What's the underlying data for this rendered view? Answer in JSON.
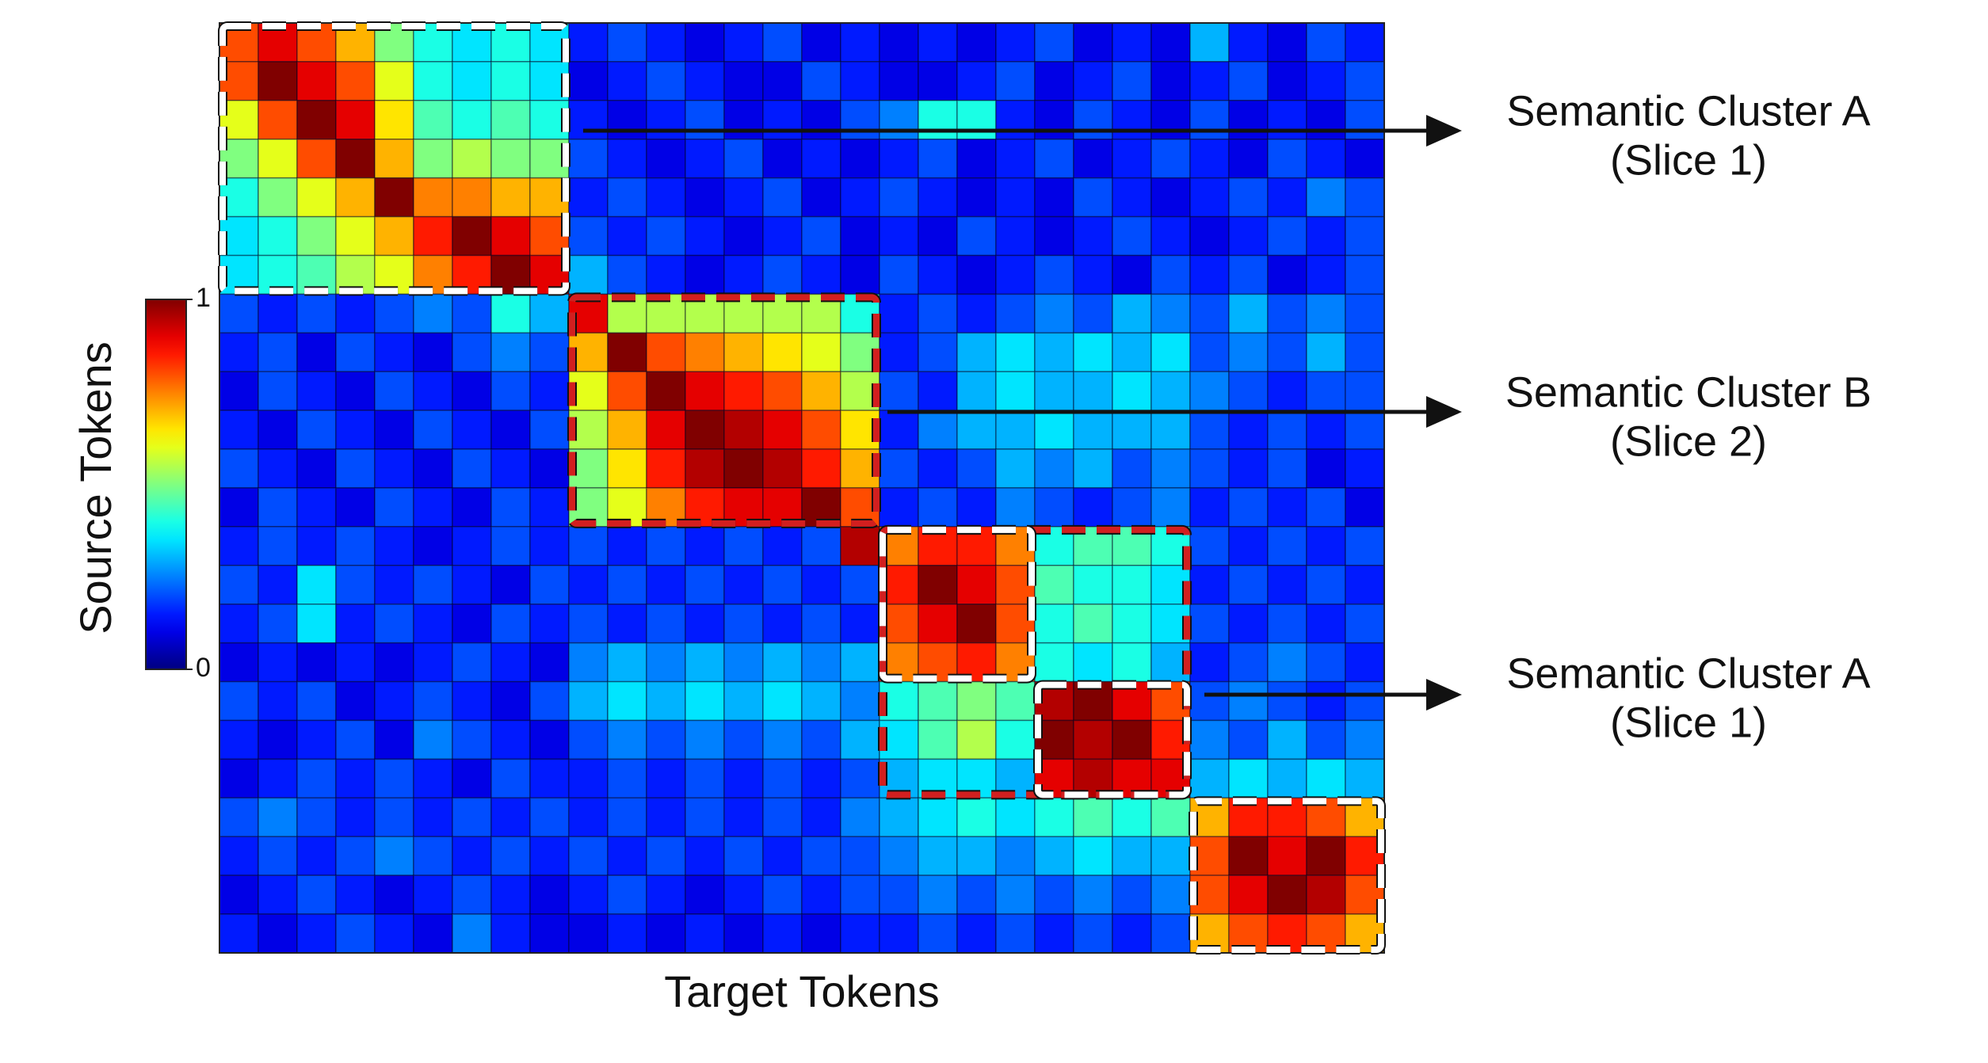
{
  "chart_data": {
    "type": "heatmap",
    "xlabel": "Target Tokens",
    "ylabel": "Source Tokens",
    "colormap": "jet",
    "clim": [
      0,
      1
    ],
    "cticks": [
      0,
      1
    ],
    "grid": true,
    "annotations": [
      [
        "Semantic Cluster A",
        "(Slice 1)"
      ],
      [
        "Semantic Cluster B",
        "(Slice 2)"
      ],
      [
        "Semantic Cluster A",
        "(Slice 1)"
      ]
    ],
    "values": [
      [
        0.8,
        0.9,
        0.8,
        0.7,
        0.5,
        0.4,
        0.35,
        0.4,
        0.35,
        0.15,
        0.2,
        0.15,
        0.1,
        0.15,
        0.2,
        0.1,
        0.15,
        0.1,
        0.15,
        0.1,
        0.15,
        0.2,
        0.1,
        0.15,
        0.1,
        0.3,
        0.15,
        0.1,
        0.2,
        0.15
      ],
      [
        0.8,
        1,
        0.9,
        0.8,
        0.6,
        0.4,
        0.35,
        0.4,
        0.35,
        0.1,
        0.15,
        0.2,
        0.15,
        0.1,
        0.1,
        0.2,
        0.15,
        0.1,
        0.1,
        0.15,
        0.2,
        0.1,
        0.15,
        0.2,
        0.1,
        0.15,
        0.2,
        0.1,
        0.15,
        0.2
      ],
      [
        0.6,
        0.8,
        1,
        0.9,
        0.65,
        0.45,
        0.4,
        0.45,
        0.4,
        0.15,
        0.1,
        0.15,
        0.2,
        0.1,
        0.15,
        0.1,
        0.2,
        0.25,
        0.4,
        0.4,
        0.15,
        0.1,
        0.2,
        0.15,
        0.1,
        0.2,
        0.1,
        0.15,
        0.1,
        0.2
      ],
      [
        0.5,
        0.6,
        0.8,
        1,
        0.7,
        0.5,
        0.55,
        0.5,
        0.5,
        0.2,
        0.15,
        0.1,
        0.15,
        0.2,
        0.1,
        0.15,
        0.1,
        0.15,
        0.2,
        0.1,
        0.15,
        0.2,
        0.1,
        0.15,
        0.2,
        0.15,
        0.1,
        0.2,
        0.15,
        0.1
      ],
      [
        0.4,
        0.5,
        0.6,
        0.7,
        1,
        0.75,
        0.75,
        0.7,
        0.7,
        0.15,
        0.2,
        0.15,
        0.1,
        0.15,
        0.2,
        0.1,
        0.15,
        0.2,
        0.15,
        0.1,
        0.15,
        0.1,
        0.2,
        0.15,
        0.1,
        0.15,
        0.2,
        0.15,
        0.25,
        0.2
      ],
      [
        0.35,
        0.4,
        0.5,
        0.6,
        0.7,
        0.85,
        1,
        0.9,
        0.8,
        0.2,
        0.15,
        0.2,
        0.15,
        0.1,
        0.15,
        0.2,
        0.1,
        0.15,
        0.1,
        0.2,
        0.15,
        0.1,
        0.15,
        0.2,
        0.15,
        0.1,
        0.15,
        0.2,
        0.15,
        0.2
      ],
      [
        0.35,
        0.4,
        0.45,
        0.55,
        0.6,
        0.75,
        0.85,
        1,
        0.9,
        0.3,
        0.2,
        0.15,
        0.1,
        0.15,
        0.2,
        0.15,
        0.1,
        0.2,
        0.15,
        0.1,
        0.15,
        0.2,
        0.15,
        0.1,
        0.2,
        0.15,
        0.2,
        0.1,
        0.15,
        0.2
      ],
      [
        0.2,
        0.15,
        0.2,
        0.15,
        0.2,
        0.25,
        0.2,
        0.4,
        0.3,
        0.9,
        0.55,
        0.55,
        0.55,
        0.55,
        0.55,
        0.55,
        0.4,
        0.15,
        0.2,
        0.15,
        0.2,
        0.25,
        0.2,
        0.3,
        0.25,
        0.2,
        0.3,
        0.2,
        0.25,
        0.2
      ],
      [
        0.15,
        0.2,
        0.1,
        0.2,
        0.15,
        0.1,
        0.2,
        0.25,
        0.2,
        0.7,
        1,
        0.8,
        0.75,
        0.7,
        0.65,
        0.6,
        0.5,
        0.15,
        0.2,
        0.3,
        0.35,
        0.3,
        0.35,
        0.3,
        0.35,
        0.2,
        0.25,
        0.2,
        0.3,
        0.2
      ],
      [
        0.1,
        0.2,
        0.15,
        0.1,
        0.2,
        0.15,
        0.1,
        0.2,
        0.15,
        0.6,
        0.8,
        1,
        0.9,
        0.85,
        0.8,
        0.7,
        0.55,
        0.2,
        0.15,
        0.3,
        0.35,
        0.3,
        0.3,
        0.35,
        0.3,
        0.25,
        0.2,
        0.15,
        0.2,
        0.2
      ],
      [
        0.15,
        0.1,
        0.2,
        0.15,
        0.1,
        0.2,
        0.15,
        0.1,
        0.2,
        0.55,
        0.7,
        0.9,
        1,
        0.95,
        0.9,
        0.8,
        0.65,
        0.15,
        0.25,
        0.3,
        0.3,
        0.35,
        0.3,
        0.3,
        0.3,
        0.2,
        0.15,
        0.2,
        0.15,
        0.2
      ],
      [
        0.2,
        0.15,
        0.1,
        0.2,
        0.15,
        0.1,
        0.2,
        0.15,
        0.1,
        0.5,
        0.65,
        0.85,
        0.95,
        1,
        0.95,
        0.85,
        0.7,
        0.2,
        0.15,
        0.2,
        0.3,
        0.25,
        0.3,
        0.2,
        0.25,
        0.2,
        0.15,
        0.2,
        0.1,
        0.15
      ],
      [
        0.1,
        0.2,
        0.15,
        0.1,
        0.2,
        0.15,
        0.1,
        0.2,
        0.15,
        0.5,
        0.6,
        0.75,
        0.85,
        0.9,
        0.9,
        1,
        0.8,
        0.15,
        0.2,
        0.15,
        0.25,
        0.2,
        0.15,
        0.2,
        0.25,
        0.15,
        0.2,
        0.15,
        0.2,
        0.1
      ],
      [
        0.15,
        0.2,
        0.15,
        0.2,
        0.15,
        0.1,
        0.15,
        0.2,
        0.15,
        0.2,
        0.15,
        0.2,
        0.15,
        0.2,
        0.15,
        0.2,
        0.95,
        0.75,
        0.85,
        0.85,
        0.75,
        0.4,
        0.45,
        0.45,
        0.4,
        0.2,
        0.15,
        0.2,
        0.15,
        0.2
      ],
      [
        0.2,
        0.15,
        0.35,
        0.2,
        0.15,
        0.2,
        0.15,
        0.1,
        0.2,
        0.15,
        0.2,
        0.15,
        0.2,
        0.15,
        0.2,
        0.15,
        0.2,
        0.85,
        1,
        0.9,
        0.8,
        0.45,
        0.4,
        0.4,
        0.35,
        0.15,
        0.2,
        0.15,
        0.2,
        0.15
      ],
      [
        0.15,
        0.2,
        0.35,
        0.15,
        0.2,
        0.15,
        0.1,
        0.2,
        0.15,
        0.2,
        0.15,
        0.2,
        0.15,
        0.2,
        0.15,
        0.2,
        0.15,
        0.8,
        0.9,
        1,
        0.8,
        0.4,
        0.45,
        0.4,
        0.35,
        0.2,
        0.15,
        0.2,
        0.15,
        0.2
      ],
      [
        0.1,
        0.15,
        0.1,
        0.15,
        0.1,
        0.15,
        0.2,
        0.15,
        0.1,
        0.25,
        0.3,
        0.25,
        0.3,
        0.25,
        0.3,
        0.25,
        0.3,
        0.75,
        0.8,
        0.85,
        0.75,
        0.4,
        0.35,
        0.4,
        0.3,
        0.15,
        0.2,
        0.25,
        0.2,
        0.15
      ],
      [
        0.2,
        0.15,
        0.2,
        0.1,
        0.15,
        0.2,
        0.15,
        0.1,
        0.2,
        0.3,
        0.35,
        0.3,
        0.35,
        0.3,
        0.35,
        0.3,
        0.25,
        0.4,
        0.45,
        0.5,
        0.45,
        0.95,
        1,
        0.9,
        0.8,
        0.2,
        0.25,
        0.2,
        0.15,
        0.2
      ],
      [
        0.15,
        0.1,
        0.15,
        0.2,
        0.1,
        0.25,
        0.2,
        0.15,
        0.1,
        0.2,
        0.25,
        0.2,
        0.25,
        0.2,
        0.25,
        0.2,
        0.3,
        0.35,
        0.45,
        0.55,
        0.4,
        1,
        0.95,
        1,
        0.85,
        0.25,
        0.2,
        0.3,
        0.2,
        0.25
      ],
      [
        0.1,
        0.15,
        0.2,
        0.15,
        0.2,
        0.15,
        0.1,
        0.2,
        0.15,
        0.15,
        0.2,
        0.15,
        0.2,
        0.15,
        0.2,
        0.15,
        0.2,
        0.3,
        0.35,
        0.35,
        0.3,
        0.9,
        0.95,
        0.9,
        0.9,
        0.3,
        0.35,
        0.3,
        0.35,
        0.3
      ],
      [
        0.2,
        0.25,
        0.2,
        0.15,
        0.2,
        0.15,
        0.2,
        0.15,
        0.2,
        0.15,
        0.2,
        0.15,
        0.2,
        0.15,
        0.2,
        0.15,
        0.25,
        0.3,
        0.35,
        0.4,
        0.35,
        0.4,
        0.45,
        0.4,
        0.45,
        0.7,
        0.85,
        0.85,
        0.8,
        0.7
      ],
      [
        0.15,
        0.2,
        0.15,
        0.2,
        0.25,
        0.2,
        0.15,
        0.2,
        0.15,
        0.2,
        0.15,
        0.2,
        0.15,
        0.2,
        0.15,
        0.2,
        0.2,
        0.25,
        0.3,
        0.3,
        0.25,
        0.3,
        0.35,
        0.3,
        0.3,
        0.8,
        1,
        0.9,
        1,
        0.85
      ],
      [
        0.1,
        0.15,
        0.2,
        0.15,
        0.1,
        0.15,
        0.2,
        0.15,
        0.1,
        0.15,
        0.2,
        0.15,
        0.1,
        0.15,
        0.2,
        0.15,
        0.2,
        0.2,
        0.25,
        0.2,
        0.25,
        0.2,
        0.25,
        0.2,
        0.25,
        0.8,
        0.9,
        1,
        0.95,
        0.8
      ],
      [
        0.15,
        0.1,
        0.15,
        0.2,
        0.15,
        0.1,
        0.25,
        0.15,
        0.1,
        0.1,
        0.15,
        0.1,
        0.15,
        0.1,
        0.15,
        0.1,
        0.15,
        0.15,
        0.2,
        0.15,
        0.2,
        0.15,
        0.2,
        0.15,
        0.2,
        0.7,
        0.8,
        0.85,
        0.8,
        0.7
      ]
    ]
  }
}
